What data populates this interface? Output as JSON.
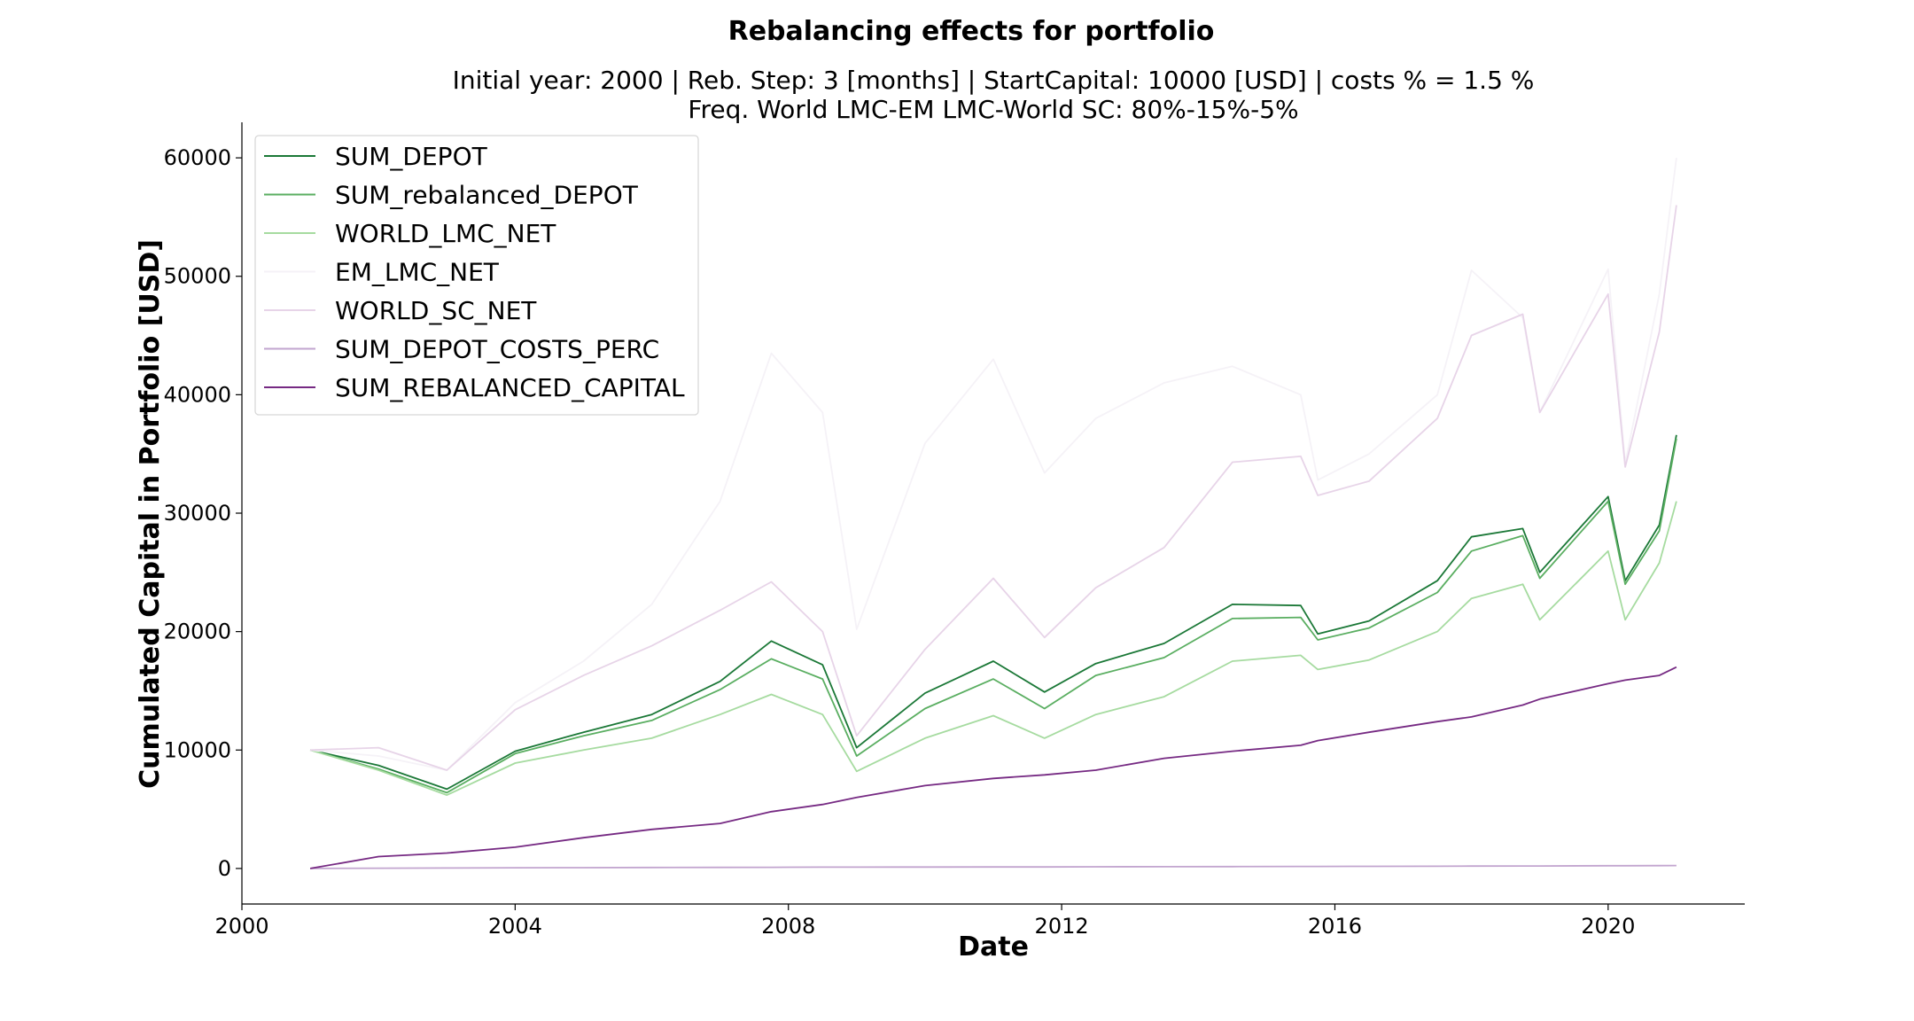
{
  "chart_data": {
    "type": "line",
    "title": "Rebalancing effects for portfolio",
    "subtitle_lines": [
      "Initial year: 2000 | Reb. Step: 3 [months] | StartCapital: 10000 [USD] | costs % = 1.5 %",
      "Freq. World LMC-EM LMC-World SC: 80%-15%-5%"
    ],
    "xlabel": "Date",
    "ylabel": "Cumulated Capital in Portfolio [USD]",
    "xlim": [
      2000,
      2022
    ],
    "ylim": [
      -3000,
      63000
    ],
    "xticks": [
      2000,
      2004,
      2008,
      2012,
      2016,
      2020
    ],
    "xtick_labels": [
      "2000",
      "2004",
      "2008",
      "2012",
      "2016",
      "2020"
    ],
    "yticks": [
      0,
      10000,
      20000,
      30000,
      40000,
      50000,
      60000
    ],
    "ytick_labels": [
      "0",
      "10000",
      "20000",
      "30000",
      "40000",
      "50000",
      "60000"
    ],
    "legend_position": "upper-left",
    "x": [
      2001.0,
      2002.0,
      2003.0,
      2004.0,
      2005.0,
      2006.0,
      2007.0,
      2007.75,
      2008.5,
      2009.0,
      2010.0,
      2011.0,
      2011.75,
      2012.5,
      2013.5,
      2014.5,
      2015.5,
      2015.75,
      2016.5,
      2017.5,
      2018.0,
      2018.75,
      2019.0,
      2020.0,
      2020.25,
      2020.75,
      2021.0
    ],
    "series": [
      {
        "name": "SUM_DEPOT",
        "color": "#1b7837",
        "values": [
          10000,
          8700,
          6700,
          9900,
          11500,
          13000,
          15800,
          19200,
          17200,
          10200,
          14800,
          17500,
          14900,
          17300,
          19000,
          22300,
          22200,
          19800,
          20900,
          24300,
          28000,
          28700,
          25000,
          31400,
          24300,
          29000,
          36600
        ]
      },
      {
        "name": "SUM_rebalanced_DEPOT",
        "color": "#5aae61",
        "values": [
          10000,
          8400,
          6400,
          9700,
          11200,
          12500,
          15100,
          17700,
          16000,
          9500,
          13500,
          16000,
          13500,
          16300,
          17800,
          21100,
          21200,
          19300,
          20300,
          23300,
          26800,
          28100,
          24500,
          31000,
          24000,
          28500,
          36300
        ]
      },
      {
        "name": "WORLD_LMC_NET",
        "color": "#a6dba0",
        "values": [
          10000,
          8300,
          6200,
          8900,
          10000,
          11000,
          13000,
          14700,
          13000,
          8200,
          11000,
          12900,
          11000,
          13000,
          14500,
          17500,
          18000,
          16800,
          17600,
          20000,
          22800,
          24000,
          21000,
          26800,
          21000,
          25800,
          31000
        ]
      },
      {
        "name": "EM_LMC_NET",
        "color": "#f5f2f7",
        "values": [
          10000,
          9500,
          8300,
          14000,
          17500,
          22300,
          31000,
          43500,
          38500,
          20200,
          35900,
          43000,
          33400,
          38000,
          41000,
          42400,
          40000,
          32800,
          35000,
          40000,
          50500,
          46500,
          38500,
          50600,
          34200,
          48500,
          60000
        ]
      },
      {
        "name": "WORLD_SC_NET",
        "color": "#e7d4e8",
        "values": [
          10000,
          10200,
          8300,
          13400,
          16300,
          18800,
          21800,
          24200,
          20000,
          11200,
          18500,
          24500,
          19500,
          23700,
          27100,
          34300,
          34800,
          31500,
          32700,
          38000,
          45000,
          46800,
          38500,
          48500,
          33900,
          45300,
          56000
        ]
      },
      {
        "name": "SUM_DEPOT_COSTS_PERC",
        "color": "#c2a5cf",
        "values": [
          0,
          20,
          40,
          60,
          70,
          80,
          90,
          100,
          110,
          110,
          120,
          130,
          130,
          140,
          150,
          160,
          170,
          170,
          180,
          190,
          200,
          210,
          210,
          230,
          230,
          240,
          250
        ]
      },
      {
        "name": "SUM_REBALANCED_CAPITAL",
        "color": "#762a83",
        "values": [
          0,
          1000,
          1300,
          1800,
          2600,
          3300,
          3800,
          4800,
          5400,
          6000,
          7000,
          7600,
          7900,
          8300,
          9300,
          9900,
          10400,
          10800,
          11500,
          12400,
          12800,
          13800,
          14300,
          15600,
          15900,
          16300,
          17000
        ]
      }
    ]
  }
}
